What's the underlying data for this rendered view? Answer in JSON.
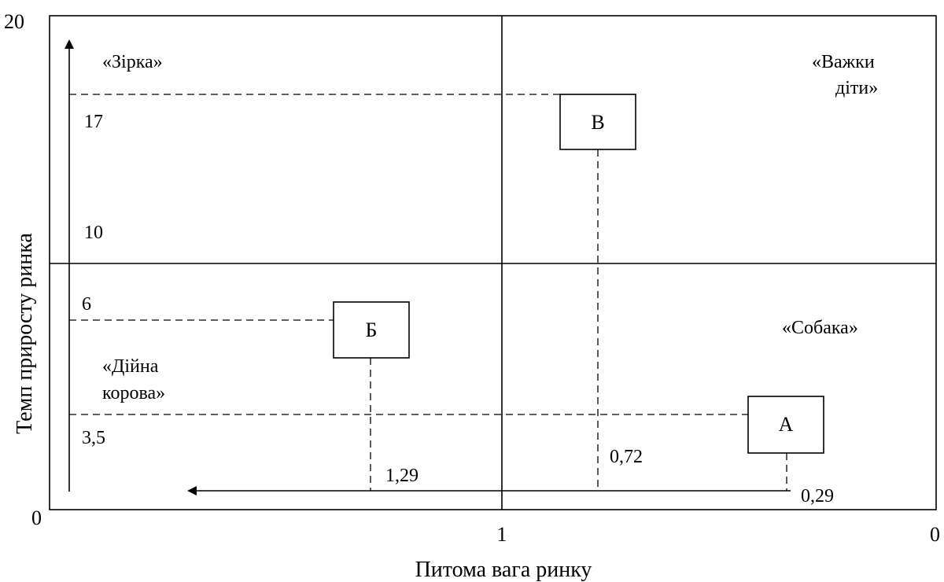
{
  "chart_data": {
    "type": "bcg-matrix",
    "y_axis": {
      "label": "Темп приросту ринка",
      "max_label": "20",
      "min_label": "0",
      "ticks": [
        "17",
        "10",
        "6",
        "3,5"
      ]
    },
    "x_axis": {
      "label": "Питома вага ринку",
      "mid_label": "1",
      "right_label": "0",
      "values": [
        "1,29",
        "0,72",
        "0,29"
      ]
    },
    "quadrants": {
      "top_left": "«Зірка»",
      "top_right_line1": "«Важки",
      "top_right_line2": "діти»",
      "bottom_left_line1": "«Дійна",
      "bottom_left_line2": "корова»",
      "bottom_right": "«Собака»"
    },
    "products": [
      {
        "name": "А",
        "relative_share": 0.29,
        "growth": 3.5
      },
      {
        "name": "Б",
        "relative_share": 1.29,
        "growth": 6
      },
      {
        "name": "В",
        "relative_share": 0.72,
        "growth": 17
      }
    ]
  }
}
